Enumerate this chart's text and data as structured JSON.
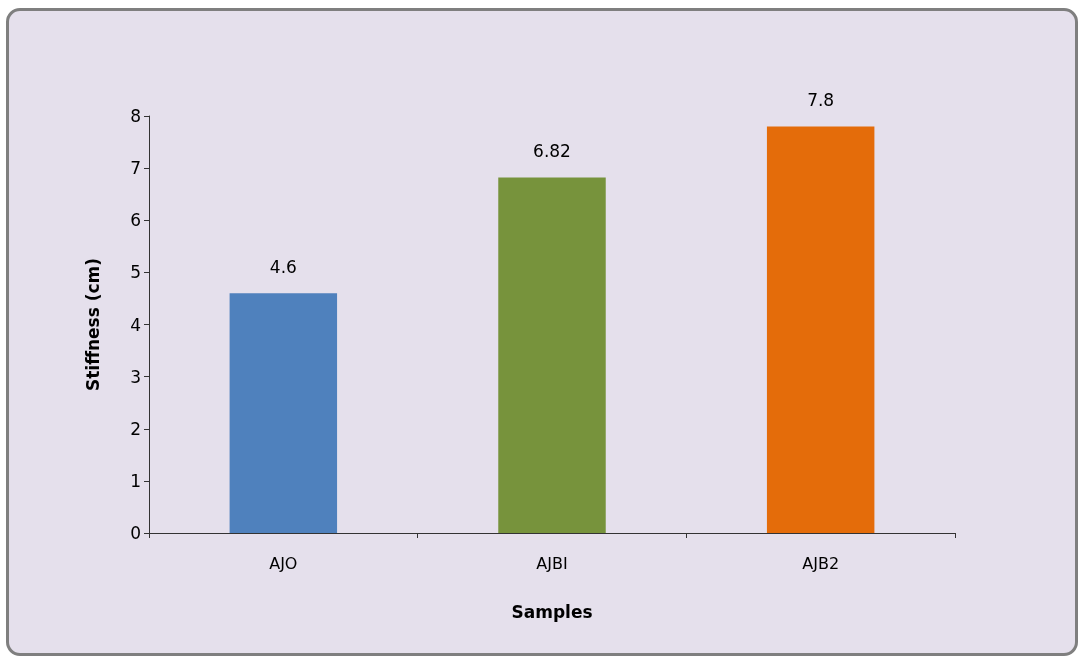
{
  "chart_data": {
    "type": "bar",
    "xlabel": "Samples",
    "ylabel": "Stiffness (cm)",
    "categories": [
      "AJO",
      "AJBI",
      "AJB2"
    ],
    "values": [
      4.6,
      6.82,
      7.8
    ],
    "colors": [
      "#4f81bd",
      "#77933c",
      "#e46c0a"
    ],
    "ylim": [
      0,
      8
    ],
    "yticks": [
      0,
      1,
      2,
      3,
      4,
      5,
      6,
      7,
      8
    ],
    "grid": false,
    "data_labels": true
  }
}
